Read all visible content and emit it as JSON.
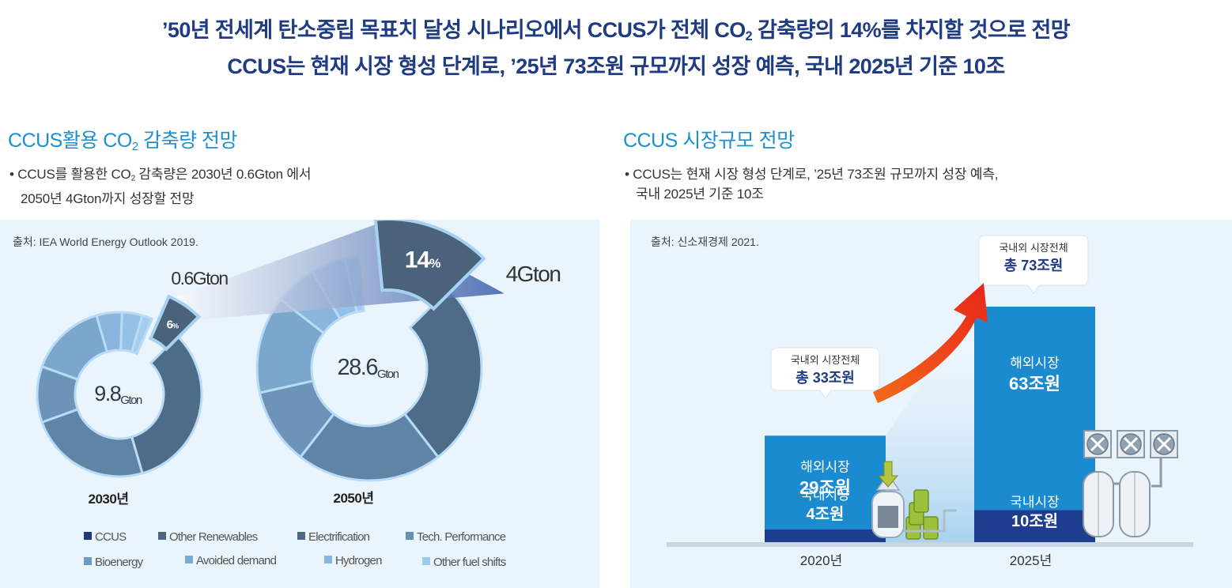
{
  "headline": {
    "line1_pre": "’50년 전세계 탄소중립 목표치 달성 시나리오에서 CCUS가 전체 CO",
    "line1_sub": "2",
    "line1_post": " 감축량의 14%를 차지할 것으로 전망",
    "line2": "CCUS는 현재 시장 형성 단계로, ’25년 73조원 규모까지 성장 예측, 국내 2025년 기준 10조"
  },
  "left": {
    "title_pre": "CCUS활용 CO",
    "title_sub": "2",
    "title_post": " 감축량 전망",
    "bullet_pre": "• CCUS를 활용한 CO",
    "bullet_sub": "2",
    "bullet_post": " 감축량은 2030년 0.6Gton 에서",
    "bullet_line2": "2050년 4Gton까지 성장할 전망",
    "source": "출처: IEA World Energy Outlook 2019."
  },
  "right": {
    "title": "CCUS 시장규모 전망",
    "bullet_line1": "• CCUS는 현재 시장 형성 단계로, ’25년 73조원 규모까지 성장 예측,",
    "bullet_line2": "국내 2025년 기준 10조",
    "source": "출처: 신소재경제 2021."
  },
  "chart_data": [
    {
      "type": "pie",
      "donuts": [
        {
          "year": "2030년",
          "total_value": "9.8",
          "total_unit": "Gton",
          "slices": [
            {
              "name": "Electrification",
              "value": 33
            },
            {
              "name": "Other Renewables",
              "value": 24
            },
            {
              "name": "Tech. Performance",
              "value": 11
            },
            {
              "name": "Bioenergy",
              "value": 15
            },
            {
              "name": "Avoided demand",
              "value": 5
            },
            {
              "name": "Hydrogen",
              "value": 4
            },
            {
              "name": "Other fuel shifts",
              "value": 2
            },
            {
              "name": "CCUS",
              "value": 6
            }
          ],
          "ccus_label": "6",
          "ccus_label_unit": "%",
          "callout": "0.6Gton"
        },
        {
          "year": "2050년",
          "total_value": "28.6",
          "total_unit": "Gton",
          "slices": [
            {
              "name": "Electrification",
              "value": 27
            },
            {
              "name": "Other Renewables",
              "value": 21
            },
            {
              "name": "Tech. Performance",
              "value": 11
            },
            {
              "name": "Bioenergy",
              "value": 14
            },
            {
              "name": "Avoided demand",
              "value": 6
            },
            {
              "name": "Hydrogen",
              "value": 5
            },
            {
              "name": "Other fuel shifts",
              "value": 2
            },
            {
              "name": "CCUS",
              "value": 14
            }
          ],
          "ccus_label": "14",
          "ccus_label_unit": "%",
          "callout": "4Gton"
        }
      ],
      "legend": [
        {
          "name": "CCUS",
          "color": "#1f3a7a"
        },
        {
          "name": "Other Renewables",
          "color": "#4a6680"
        },
        {
          "name": "Electrification",
          "color": "#4c6a86"
        },
        {
          "name": "Tech. Performance",
          "color": "#6490b2"
        },
        {
          "name": "Bioenergy",
          "color": "#6d9bc3"
        },
        {
          "name": "Avoided demand",
          "color": "#7aaad6"
        },
        {
          "name": "Hydrogen",
          "color": "#85b5e0"
        },
        {
          "name": "Other fuel shifts",
          "color": "#9ccbef"
        }
      ]
    },
    {
      "type": "bar",
      "stacked": true,
      "categories": [
        "2020년",
        "2025년"
      ],
      "unit": "조원",
      "series": [
        {
          "name": "국내시장",
          "values": [
            4,
            10
          ],
          "labels": [
            "4조원",
            "10조원"
          ],
          "color": "#1d3d8f"
        },
        {
          "name": "해외시장",
          "values": [
            29,
            63
          ],
          "labels": [
            "29조원",
            "63조원"
          ],
          "color": "#1b8bd0"
        }
      ],
      "totals": [
        {
          "label_top": "국내외 시장전체",
          "label_bottom": "총 33조원"
        },
        {
          "label_top": "국내외 시장전체",
          "label_bottom": "총 73조원"
        }
      ],
      "ylim": [
        0,
        73
      ]
    }
  ]
}
